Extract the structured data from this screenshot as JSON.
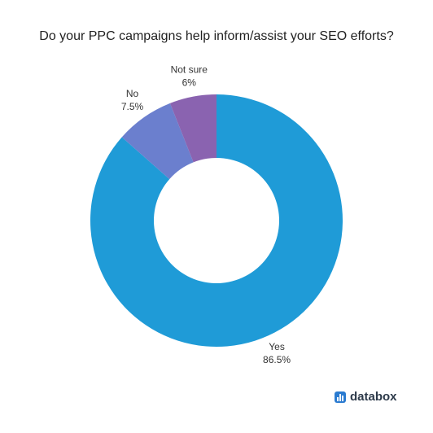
{
  "chart_data": {
    "type": "donut",
    "title": "Do your PPC campaigns help inform/assist your SEO efforts?",
    "categories": [
      "Yes",
      "No",
      "Not sure"
    ],
    "values": [
      86.5,
      7.5,
      6
    ],
    "value_labels": [
      "86.5%",
      "7.5%",
      "6%"
    ],
    "colors": [
      "#1f9bd7",
      "#6b7fce",
      "#8a63b0"
    ],
    "watermark": "databox"
  }
}
